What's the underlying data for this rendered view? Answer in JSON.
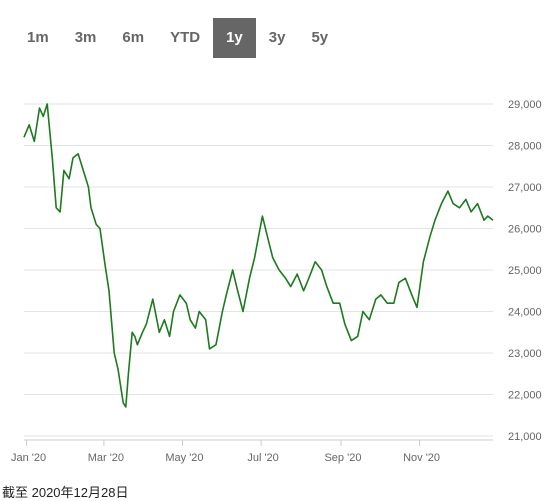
{
  "range_tabs": [
    {
      "label": "1m",
      "active": false
    },
    {
      "label": "3m",
      "active": false
    },
    {
      "label": "6m",
      "active": false
    },
    {
      "label": "YTD",
      "active": false
    },
    {
      "label": "1y",
      "active": true
    },
    {
      "label": "3y",
      "active": false
    },
    {
      "label": "5y",
      "active": false
    }
  ],
  "colors": {
    "line": "#1e7a1e",
    "grid": "#e3e3e3",
    "axis_text": "#666666",
    "active_tab_bg": "#666666"
  },
  "chart_data": {
    "type": "line",
    "title": "",
    "xlabel": "",
    "ylabel": "",
    "xlim": [
      "2019-12-30",
      "2020-12-28"
    ],
    "ylim": [
      21000,
      29000
    ],
    "y_ticks": [
      21000,
      22000,
      23000,
      24000,
      25000,
      26000,
      27000,
      28000,
      29000
    ],
    "y_tick_labels": [
      "21,000",
      "22,000",
      "23,000",
      "24,000",
      "25,000",
      "26,000",
      "27,000",
      "28,000",
      "29,000"
    ],
    "x_ticks": [
      "2020-01-01",
      "2020-03-01",
      "2020-05-01",
      "2020-07-01",
      "2020-09-01",
      "2020-11-01"
    ],
    "x_tick_labels": [
      "Jan '20",
      "Mar '20",
      "May '20",
      "Jul '20",
      "Sep '20",
      "Nov '20"
    ],
    "grid": true,
    "series": [
      {
        "x": [
          "2019-12-30",
          "2020-01-03",
          "2020-01-07",
          "2020-01-11",
          "2020-01-14",
          "2020-01-17",
          "2020-01-21",
          "2020-01-24",
          "2020-01-27",
          "2020-01-30",
          "2020-02-03",
          "2020-02-06",
          "2020-02-10",
          "2020-02-13",
          "2020-02-18",
          "2020-02-20",
          "2020-02-24",
          "2020-02-27",
          "2020-03-02",
          "2020-03-05",
          "2020-03-09",
          "2020-03-12",
          "2020-03-16",
          "2020-03-18",
          "2020-03-20",
          "2020-03-23",
          "2020-03-25",
          "2020-03-27",
          "2020-03-31",
          "2020-04-03",
          "2020-04-08",
          "2020-04-13",
          "2020-04-17",
          "2020-04-21",
          "2020-04-24",
          "2020-04-29",
          "2020-05-04",
          "2020-05-07",
          "2020-05-11",
          "2020-05-14",
          "2020-05-19",
          "2020-05-22",
          "2020-05-27",
          "2020-06-01",
          "2020-06-04",
          "2020-06-09",
          "2020-06-12",
          "2020-06-17",
          "2020-06-22",
          "2020-06-26",
          "2020-07-02",
          "2020-07-06",
          "2020-07-10",
          "2020-07-15",
          "2020-07-20",
          "2020-07-24",
          "2020-07-29",
          "2020-08-03",
          "2020-08-07",
          "2020-08-12",
          "2020-08-17",
          "2020-08-21",
          "2020-08-26",
          "2020-08-31",
          "2020-09-04",
          "2020-09-09",
          "2020-09-14",
          "2020-09-18",
          "2020-09-23",
          "2020-09-28",
          "2020-10-02",
          "2020-10-07",
          "2020-10-12",
          "2020-10-16",
          "2020-10-21",
          "2020-10-26",
          "2020-10-30",
          "2020-11-04",
          "2020-11-09",
          "2020-11-13",
          "2020-11-18",
          "2020-11-23",
          "2020-11-27",
          "2020-12-02",
          "2020-12-07",
          "2020-12-11",
          "2020-12-16",
          "2020-12-21",
          "2020-12-24",
          "2020-12-28"
        ],
        "values": [
          28200,
          28500,
          28100,
          28900,
          28700,
          29000,
          27700,
          26500,
          26400,
          27400,
          27200,
          27700,
          27800,
          27500,
          27000,
          26500,
          26100,
          26000,
          25100,
          24500,
          23000,
          22600,
          21800,
          21700,
          22500,
          23500,
          23400,
          23200,
          23500,
          23700,
          24300,
          23500,
          23800,
          23400,
          24000,
          24400,
          24200,
          23800,
          23600,
          24000,
          23800,
          23100,
          23200,
          24000,
          24400,
          25000,
          24600,
          24000,
          24800,
          25300,
          26300,
          25800,
          25300,
          25000,
          24800,
          24600,
          24900,
          24500,
          24800,
          25200,
          25000,
          24600,
          24200,
          24200,
          23700,
          23300,
          23400,
          24000,
          23800,
          24300,
          24400,
          24200,
          24200,
          24700,
          24800,
          24400,
          24100,
          25200,
          25800,
          26200,
          26600,
          26900,
          26600,
          26500,
          26700,
          26400,
          26600,
          26200,
          26300,
          26200
        ]
      }
    ]
  },
  "footnote": "截至 2020年12月28日"
}
